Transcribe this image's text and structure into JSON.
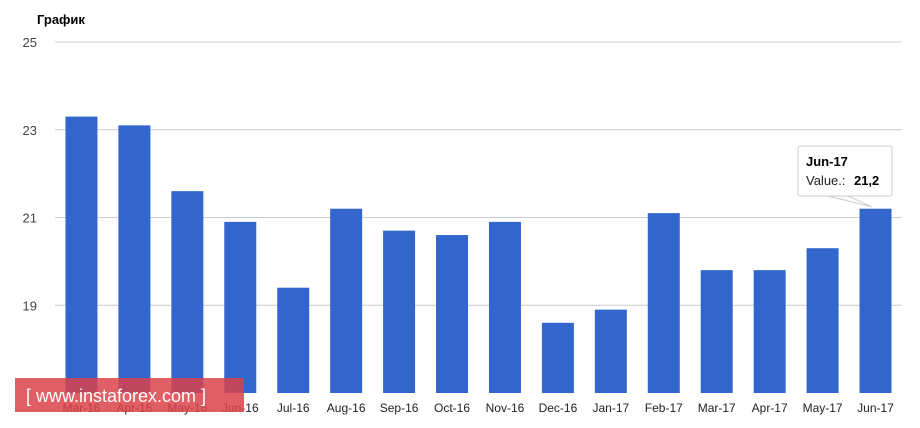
{
  "chart_data": {
    "type": "bar",
    "title": "График",
    "categories": [
      "Mar-16",
      "Apr-16",
      "May-16",
      "Jun-16",
      "Jul-16",
      "Aug-16",
      "Sep-16",
      "Oct-16",
      "Nov-16",
      "Dec-16",
      "Jan-17",
      "Feb-17",
      "Mar-17",
      "Apr-17",
      "May-17",
      "Jun-17"
    ],
    "values": [
      23.3,
      23.1,
      21.6,
      20.9,
      19.4,
      21.2,
      20.7,
      20.6,
      20.9,
      18.6,
      18.9,
      21.1,
      19.8,
      19.8,
      20.3,
      21.2
    ],
    "ylim": [
      17,
      25
    ],
    "yticks": [
      19,
      21,
      23,
      25
    ],
    "grid": true,
    "bar_color": "#3366cc",
    "tooltip": {
      "category": "Jun-17",
      "label": "Value.:",
      "value": "21,2"
    }
  },
  "watermark": {
    "text": "[  www.instaforex.com ]",
    "color": "#d9434a"
  }
}
